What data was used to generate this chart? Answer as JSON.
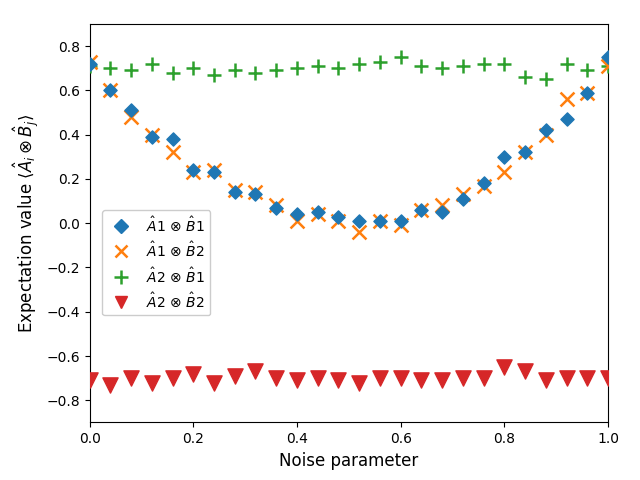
{
  "xlabel": "Noise parameter",
  "ylabel": "Expectation value $\\langle\\hat{A}_i \\otimes \\hat{B}_j\\rangle$",
  "noise_param": [
    0.0,
    0.04,
    0.08,
    0.12,
    0.16,
    0.2,
    0.24,
    0.28,
    0.32,
    0.36,
    0.4,
    0.44,
    0.48,
    0.52,
    0.56,
    0.6,
    0.64,
    0.68,
    0.72,
    0.76,
    0.8,
    0.84,
    0.88,
    0.92,
    0.96,
    1.0
  ],
  "A1B1": [
    0.72,
    0.6,
    0.51,
    0.39,
    0.38,
    0.24,
    0.23,
    0.14,
    0.13,
    0.07,
    0.04,
    0.05,
    0.03,
    0.01,
    0.01,
    0.01,
    0.06,
    0.05,
    0.11,
    0.18,
    0.3,
    0.32,
    0.42,
    0.47,
    0.59,
    0.75
  ],
  "A1B2": [
    0.73,
    0.6,
    0.48,
    0.4,
    0.32,
    0.23,
    0.24,
    0.15,
    0.14,
    0.08,
    0.01,
    0.04,
    0.01,
    -0.04,
    0.01,
    -0.01,
    0.06,
    0.08,
    0.13,
    0.17,
    0.23,
    0.32,
    0.4,
    0.56,
    0.59,
    0.71
  ],
  "A2B1": [
    0.71,
    0.7,
    0.69,
    0.72,
    0.68,
    0.7,
    0.67,
    0.69,
    0.68,
    0.69,
    0.7,
    0.71,
    0.7,
    0.72,
    0.73,
    0.75,
    0.71,
    0.7,
    0.71,
    0.72,
    0.72,
    0.66,
    0.65,
    0.72,
    0.69,
    0.71
  ],
  "A2B2": [
    -0.71,
    -0.73,
    -0.7,
    -0.72,
    -0.7,
    -0.68,
    -0.72,
    -0.69,
    -0.67,
    -0.7,
    -0.71,
    -0.7,
    -0.71,
    -0.72,
    -0.7,
    -0.7,
    -0.71,
    -0.71,
    -0.7,
    -0.7,
    -0.65,
    -0.67,
    -0.71,
    -0.7,
    -0.7,
    -0.7
  ],
  "color_A1B1": "#1f77b4",
  "color_A1B2": "#ff7f0e",
  "color_A2B1": "#2ca02c",
  "color_A2B2": "#d62728",
  "legend_A1B1": "$\\hat{A}$1 $\\otimes$ $\\hat{B}$1",
  "legend_A1B2": "$\\hat{A}$1 $\\otimes$ $\\hat{B}$2",
  "legend_A2B1": "$\\hat{A}$2 $\\otimes$ $\\hat{B}$1",
  "legend_A2B2": "$\\hat{A}$2 $\\otimes$ $\\hat{B}$2",
  "xlim": [
    0.0,
    1.0
  ],
  "ylim": [
    -0.9,
    0.9
  ],
  "figsize": [
    6.4,
    4.8
  ],
  "dpi": 100
}
